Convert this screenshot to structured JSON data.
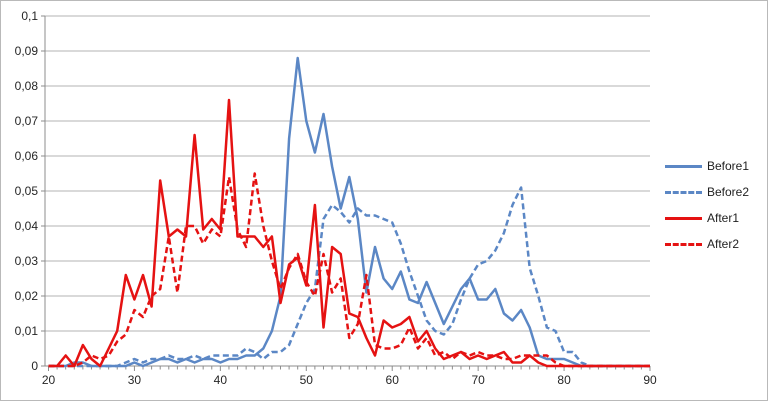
{
  "chart_data": {
    "type": "line",
    "title": "",
    "xlabel": "",
    "ylabel": "",
    "xlim": [
      20,
      90
    ],
    "ylim": [
      0,
      0.1
    ],
    "grid": true,
    "legend_position": "right",
    "decimal_separator": ",",
    "x_tick_labels": [
      "20",
      "30",
      "40",
      "50",
      "60",
      "70",
      "80",
      "90"
    ],
    "y_tick_labels": [
      "0",
      "0,01",
      "0,02",
      "0,03",
      "0,04",
      "0,05",
      "0,06",
      "0,07",
      "0,08",
      "0,09",
      "0,1"
    ],
    "x": [
      20,
      21,
      22,
      23,
      24,
      25,
      26,
      27,
      28,
      29,
      30,
      31,
      32,
      33,
      34,
      35,
      36,
      37,
      38,
      39,
      40,
      41,
      42,
      43,
      44,
      45,
      46,
      47,
      48,
      49,
      50,
      51,
      52,
      53,
      54,
      55,
      56,
      57,
      58,
      59,
      60,
      61,
      62,
      63,
      64,
      65,
      66,
      67,
      68,
      69,
      70,
      71,
      72,
      73,
      74,
      75,
      76,
      77,
      78,
      79,
      80,
      81,
      82,
      83,
      84,
      85,
      86,
      87,
      88,
      89,
      90
    ],
    "series": [
      {
        "name": "Before1",
        "color": "#5b87c5",
        "style": "solid",
        "values": [
          0,
          0,
          0,
          0.001,
          0.001,
          0,
          0,
          0,
          0,
          0,
          0.001,
          0,
          0.001,
          0.002,
          0.002,
          0.001,
          0.002,
          0.001,
          0.002,
          0.002,
          0.001,
          0.002,
          0.002,
          0.003,
          0.003,
          0.005,
          0.01,
          0.02,
          0.065,
          0.088,
          0.07,
          0.061,
          0.072,
          0.057,
          0.045,
          0.054,
          0.042,
          0.021,
          0.034,
          0.025,
          0.022,
          0.027,
          0.019,
          0.018,
          0.024,
          0.018,
          0.012,
          0.017,
          0.022,
          0.025,
          0.019,
          0.019,
          0.022,
          0.015,
          0.013,
          0.016,
          0.011,
          0.003,
          0.002,
          0.002,
          0.002,
          0.001,
          0,
          0,
          0,
          0,
          0,
          0,
          0,
          0,
          0
        ]
      },
      {
        "name": "Before2",
        "color": "#5b87c5",
        "style": "dashed",
        "values": [
          0,
          0,
          0,
          0,
          0,
          0,
          0,
          0,
          0,
          0.001,
          0.002,
          0.001,
          0.002,
          0.002,
          0.003,
          0.002,
          0.002,
          0.003,
          0.002,
          0.003,
          0.003,
          0.003,
          0.003,
          0.005,
          0.004,
          0.002,
          0.004,
          0.004,
          0.006,
          0.012,
          0.018,
          0.022,
          0.042,
          0.046,
          0.044,
          0.041,
          0.045,
          0.043,
          0.043,
          0.042,
          0.041,
          0.035,
          0.027,
          0.02,
          0.013,
          0.01,
          0.009,
          0.012,
          0.019,
          0.025,
          0.029,
          0.03,
          0.033,
          0.038,
          0.046,
          0.051,
          0.028,
          0.02,
          0.011,
          0.01,
          0.004,
          0.004,
          0.001,
          0,
          0,
          0,
          0,
          0,
          0,
          0,
          0
        ]
      },
      {
        "name": "After1",
        "color": "#e51212",
        "style": "solid",
        "values": [
          0,
          0,
          0.003,
          0,
          0.006,
          0.002,
          0,
          0.005,
          0.01,
          0.026,
          0.019,
          0.026,
          0.017,
          0.053,
          0.037,
          0.039,
          0.037,
          0.066,
          0.039,
          0.042,
          0.039,
          0.076,
          0.037,
          0.037,
          0.037,
          0.034,
          0.037,
          0.018,
          0.029,
          0.031,
          0.023,
          0.046,
          0.011,
          0.034,
          0.032,
          0.015,
          0.014,
          0.008,
          0.003,
          0.013,
          0.011,
          0.012,
          0.014,
          0.007,
          0.01,
          0.005,
          0.002,
          0.003,
          0.004,
          0.002,
          0.003,
          0.002,
          0.003,
          0.004,
          0.001,
          0.001,
          0.003,
          0.001,
          0,
          0,
          0,
          0,
          0,
          0,
          0,
          0,
          0,
          0,
          0,
          0,
          0
        ]
      },
      {
        "name": "After2",
        "color": "#e51212",
        "style": "dashed",
        "values": [
          0,
          0,
          0,
          0,
          0.001,
          0.003,
          0.002,
          0.003,
          0.007,
          0.009,
          0.016,
          0.014,
          0.02,
          0.022,
          0.037,
          0.021,
          0.04,
          0.04,
          0.035,
          0.039,
          0.037,
          0.054,
          0.039,
          0.034,
          0.055,
          0.04,
          0.03,
          0.022,
          0.028,
          0.032,
          0.024,
          0.02,
          0.032,
          0.021,
          0.025,
          0.008,
          0.012,
          0.026,
          0.006,
          0.005,
          0.005,
          0.006,
          0.011,
          0.005,
          0.008,
          0.003,
          0.004,
          0.002,
          0.004,
          0.003,
          0.004,
          0.003,
          0.003,
          0.002,
          0.002,
          0.003,
          0.003,
          0.003,
          0.003,
          0.001,
          0,
          0,
          0,
          0,
          0,
          0,
          0,
          0,
          0,
          0,
          0
        ]
      }
    ],
    "colors": {
      "gridline": "#b3b3b3",
      "axis": "#8c8c8c",
      "tick_label": "#262626",
      "background": "#ffffff"
    }
  }
}
